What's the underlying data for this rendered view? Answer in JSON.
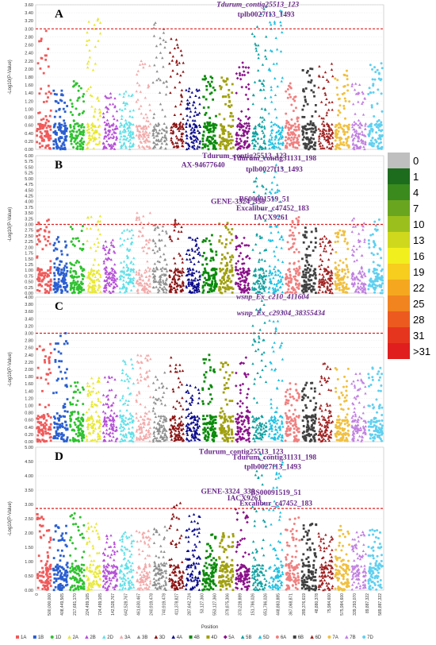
{
  "chromosomes": [
    {
      "name": "1A",
      "color": "#f05a5a"
    },
    {
      "name": "1B",
      "color": "#2a5fd0"
    },
    {
      "name": "1D",
      "color": "#2fc22f"
    },
    {
      "name": "2A",
      "color": "#e8e830"
    },
    {
      "name": "2B",
      "color": "#b44fd6"
    },
    {
      "name": "2D",
      "color": "#5fe0e8"
    },
    {
      "name": "3A",
      "color": "#f2aaaa"
    },
    {
      "name": "3B",
      "color": "#8f8f8f"
    },
    {
      "name": "3D",
      "color": "#8a1010"
    },
    {
      "name": "4A",
      "color": "#0a0a8a"
    },
    {
      "name": "4B",
      "color": "#0a8a0a"
    },
    {
      "name": "4D",
      "color": "#a0a010"
    },
    {
      "name": "5A",
      "color": "#8a108a"
    },
    {
      "name": "5B",
      "color": "#10a0a0"
    },
    {
      "name": "5D",
      "color": "#20c0e0"
    },
    {
      "name": "6A",
      "color": "#f08080"
    },
    {
      "name": "6B",
      "color": "#404040"
    },
    {
      "name": "6D",
      "color": "#a02020"
    },
    {
      "name": "7A",
      "color": "#f0c040"
    },
    {
      "name": "7B",
      "color": "#c080e0"
    },
    {
      "name": "7D",
      "color": "#60d0f0"
    }
  ],
  "position_ticks": [
    "0",
    "500,000,000",
    "408,449,565",
    "217,681,170",
    "224,499,165",
    "724,499,165",
    "142,528,767",
    "642,528,767",
    "461,630,467",
    "240,919,478",
    "740,919,478",
    "411,378,827",
    "287,642,724",
    "53,127,360",
    "553,127,360",
    "379,875,306",
    "370,228,889",
    "151,786,026",
    "651,786,026",
    "448,883,885",
    "367,068,871",
    "289,376,619",
    "48,880,378",
    "75,984,600",
    "575,984,600",
    "339,293,070",
    "89,887,322",
    "589,887,322"
  ],
  "xlabel": "Position",
  "ylabel": "-Log10(P-Value)",
  "colorscale": {
    "labels": [
      "0",
      "1",
      "4",
      "7",
      "10",
      "13",
      "16",
      "19",
      "22",
      "25",
      "28",
      "31",
      ">31"
    ],
    "colors": [
      "#bfbfbf",
      "#1d6b1d",
      "#3a8a1e",
      "#6aa51f",
      "#9bc01e",
      "#cfd81c",
      "#f2ef1e",
      "#f7cd1e",
      "#f5a81f",
      "#f1841f",
      "#ec5a20",
      "#e6351f",
      "#e01e1e"
    ]
  },
  "chart_data": [
    {
      "type": "scatter",
      "panel": "A",
      "ylim": [
        0,
        3.6
      ],
      "yticks": [
        "0.00",
        "0.20",
        "0.40",
        "0.60",
        "0.80",
        "1.00",
        "1.20",
        "1.40",
        "1.60",
        "1.80",
        "2.00",
        "2.20",
        "2.40",
        "2.60",
        "2.80",
        "3.00",
        "3.20",
        "3.40",
        "3.60"
      ],
      "threshold": 3.0,
      "peaks": [
        [
          0,
          2.95
        ],
        [
          3,
          3.25
        ],
        [
          6,
          2.2
        ],
        [
          7,
          3.15
        ],
        [
          8,
          2.75
        ],
        [
          13,
          3.55
        ],
        [
          14,
          3.45
        ]
      ],
      "annotations": [
        {
          "text": "Tdurum_contig25513_123",
          "italic": true,
          "x": 13.4,
          "y": 3.55
        },
        {
          "text": "tplb0027f13_1493",
          "italic": false,
          "x": 13.9,
          "y": 3.3
        }
      ]
    },
    {
      "type": "scatter",
      "panel": "B",
      "ylim": [
        0,
        6.0
      ],
      "yticks": [
        "0.00",
        "0.25",
        "0.50",
        "0.75",
        "1.00",
        "1.25",
        "1.50",
        "1.75",
        "2.00",
        "2.25",
        "2.50",
        "2.75",
        "3.00",
        "3.25",
        "3.50",
        "3.75",
        "4.00",
        "4.25",
        "4.50",
        "4.75",
        "5.00",
        "5.25",
        "5.50",
        "5.75",
        "6.00"
      ],
      "threshold": 3.0,
      "peaks": [
        [
          0,
          3.2
        ],
        [
          8,
          3.2
        ],
        [
          13,
          5.9
        ],
        [
          14,
          5.6
        ]
      ],
      "annotations": [
        {
          "text": "Tdurum_contig25513_123",
          "italic": false,
          "x": 12.6,
          "y": 5.9
        },
        {
          "text": "Tdurum_contig31131_198",
          "italic": false,
          "x": 14.4,
          "y": 5.8
        },
        {
          "text": "AX-94677640",
          "italic": false,
          "x": 10.1,
          "y": 5.5
        },
        {
          "text": "tplb0027f13_1493",
          "italic": false,
          "x": 14.4,
          "y": 5.3
        },
        {
          "text": "GENE-3324_338",
          "italic": false,
          "x": 12.2,
          "y": 3.9
        },
        {
          "text": "BS00091519_51",
          "italic": false,
          "x": 13.8,
          "y": 4.0
        },
        {
          "text": "Excalibur_c47452_183",
          "italic": false,
          "x": 14.3,
          "y": 3.6
        },
        {
          "text": "IACX9261",
          "italic": false,
          "x": 14.2,
          "y": 3.2
        }
      ]
    },
    {
      "type": "scatter",
      "panel": "C",
      "ylim": [
        0,
        4.0
      ],
      "yticks": [
        "0.00",
        "0.20",
        "0.40",
        "0.60",
        "0.80",
        "1.00",
        "1.20",
        "1.40",
        "1.60",
        "1.80",
        "2.00",
        "2.20",
        "2.40",
        "2.60",
        "2.80",
        "3.00",
        "3.20",
        "3.40",
        "3.60",
        "3.80",
        "4.00"
      ],
      "threshold": 3.0,
      "peaks": [
        [
          0,
          2.7
        ],
        [
          1,
          3.0
        ],
        [
          13,
          3.9
        ],
        [
          14,
          3.6
        ]
      ],
      "annotations": [
        {
          "text": "wsnp_Ex_c210_411604",
          "italic": true,
          "x": 14.3,
          "y": 3.95
        },
        {
          "text": "wsnp_Ex_c29304_38355434",
          "italic": true,
          "x": 14.8,
          "y": 3.5
        }
      ]
    },
    {
      "type": "scatter",
      "panel": "D",
      "ylim": [
        0,
        5.25
      ],
      "yticks": [
        "0.00",
        "0.50",
        "1.00",
        "1.50",
        "2.00",
        "2.50",
        "3.00",
        "3.50",
        "4.00",
        "4.50",
        "5.00"
      ],
      "threshold": 3.0,
      "peaks": [
        [
          8,
          3.2
        ],
        [
          13,
          5.0
        ],
        [
          14,
          4.7
        ]
      ],
      "annotations": [
        {
          "text": "Tdurum_contig25513_123",
          "italic": false,
          "x": 12.4,
          "y": 5.0
        },
        {
          "text": "Tdurum_contig31131_198",
          "italic": false,
          "x": 14.4,
          "y": 4.8
        },
        {
          "text": "tplb0027f13_1493",
          "italic": false,
          "x": 14.3,
          "y": 4.45
        },
        {
          "text": "GENE-3324_338",
          "italic": false,
          "x": 11.6,
          "y": 3.55
        },
        {
          "text": "IACX9261",
          "italic": false,
          "x": 12.6,
          "y": 3.3
        },
        {
          "text": "BS00091519_51",
          "italic": false,
          "x": 14.5,
          "y": 3.5
        },
        {
          "text": "Excalibur_c47452_183",
          "italic": false,
          "x": 14.5,
          "y": 3.1
        }
      ]
    }
  ]
}
